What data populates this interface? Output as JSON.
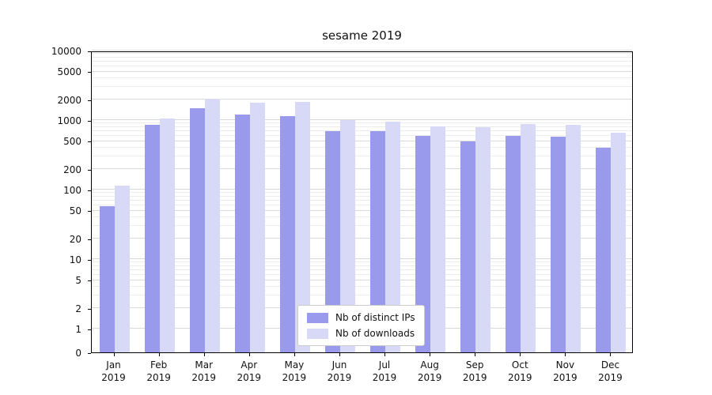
{
  "chart_data": {
    "type": "bar",
    "title": "sesame 2019",
    "categories": [
      "Jan",
      "Feb",
      "Mar",
      "Apr",
      "May",
      "Jun",
      "Jul",
      "Aug",
      "Sep",
      "Oct",
      "Nov",
      "Dec"
    ],
    "xtick_year": "2019",
    "series": [
      {
        "name": "Nb of distinct IPs",
        "color": "#9a9aec",
        "values": [
          58,
          850,
          1500,
          1200,
          1150,
          700,
          700,
          600,
          500,
          600,
          570,
          400
        ]
      },
      {
        "name": "Nb of downloads",
        "color": "#d8d8f7",
        "values": [
          115,
          1050,
          2050,
          1800,
          1850,
          1000,
          950,
          820,
          790,
          880,
          850,
          650
        ]
      }
    ],
    "yscale": "symlog",
    "ylim": [
      0,
      10000
    ],
    "yticks": [
      0,
      1,
      2,
      5,
      10,
      20,
      50,
      100,
      200,
      500,
      1000,
      2000,
      5000,
      10000
    ],
    "grid": true,
    "legend_position": "lower center"
  }
}
